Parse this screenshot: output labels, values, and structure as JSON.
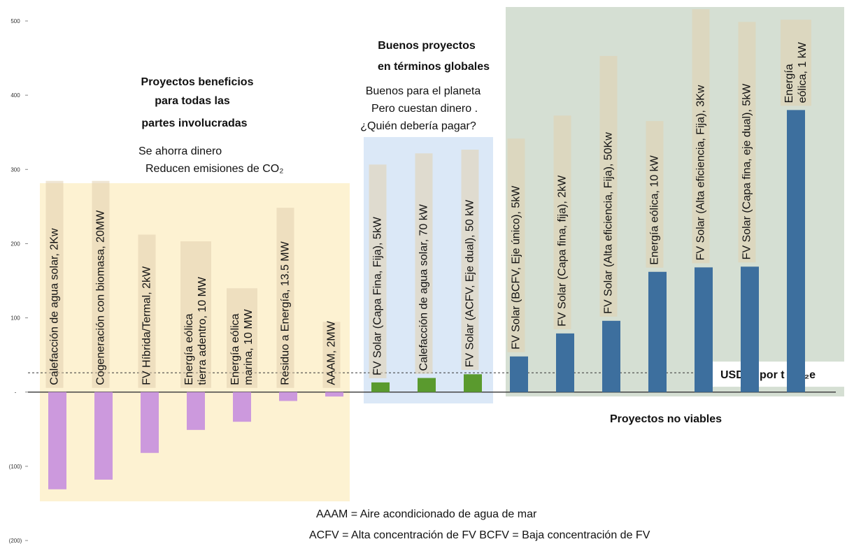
{
  "chart_data": {
    "type": "bar",
    "categories": [
      [
        "Calefacción de agua solar, 2Kw"
      ],
      [
        "Cogeneración con biomasa, 20MW"
      ],
      [
        "FV Híbrida/Termal, 2kW"
      ],
      [
        "Energía eólica",
        "tierra adentro, 10 MW"
      ],
      [
        "Energía eólica",
        "marina, 10 MW"
      ],
      [
        "Residuo a Energía, 13.5 MW"
      ],
      [
        "AAAM, 2MW"
      ],
      [
        "FV Solar (Capa Fina, Fija), 5kW"
      ],
      [
        "Calefacción de agua solar, 70 kW"
      ],
      [
        "FV Solar (ACFV, Eje dual), 50 kW"
      ],
      [
        "FV Solar (BCFV, Eje único), 5kW"
      ],
      [
        "FV Solar (Capa fina, fija), 2kW"
      ],
      [
        "FV Solar (Alta eficiencia, Fija), 50Kw"
      ],
      [
        "Energía eólica, 10 kW"
      ],
      [
        "FV Solar (Alta eficiencia, Fija), 3Kw"
      ],
      [
        "FV Solar (Capa fina, eje dual), 5kW"
      ],
      [
        "Energía",
        "eólica, 1 kW"
      ]
    ],
    "values": [
      -131,
      -118,
      -82,
      -51,
      -40,
      -12,
      -6,
      13,
      19,
      24,
      48,
      79,
      96,
      162,
      168,
      169,
      380
    ],
    "colors": [
      "#cc99dd",
      "#cc99dd",
      "#cc99dd",
      "#cc99dd",
      "#cc99dd",
      "#cc99dd",
      "#cc99dd",
      "#5a9a2e",
      "#5a9a2e",
      "#5a9a2e",
      "#3d6f9e",
      "#3d6f9e",
      "#3d6f9e",
      "#3d6f9e",
      "#3d6f9e",
      "#3d6f9e",
      "#3d6f9e"
    ],
    "ylim": [
      -200,
      500
    ],
    "yticks": [
      {
        "value": -200,
        "label": "(200)"
      },
      {
        "value": -100,
        "label": "(100)"
      },
      {
        "value": 0,
        "label": "-"
      },
      100,
      200,
      300,
      400,
      500
    ],
    "reference_line": {
      "value": 26,
      "label": "USD26 por t CO₂e"
    },
    "groups": [
      {
        "title": [
          "Proyectos beneficios",
          "para todas las",
          "partes involucradas"
        ],
        "notes": [
          "Se ahorra dinero",
          "Reducen emisiones de CO₂"
        ]
      },
      {
        "title": [
          "Buenos proyectos",
          "en términos globales"
        ],
        "notes": [
          "Buenos para el planeta",
          "Pero cuestan dinero .",
          "¿Quién debería pagar?"
        ]
      },
      {
        "title": [
          "Proyectos no viables"
        ]
      }
    ],
    "footnotes": [
      "AAAM = Aire acondicionado de agua de mar",
      "ACFV = Alta concentración de FV BCFV = Baja concentración de FV"
    ]
  }
}
